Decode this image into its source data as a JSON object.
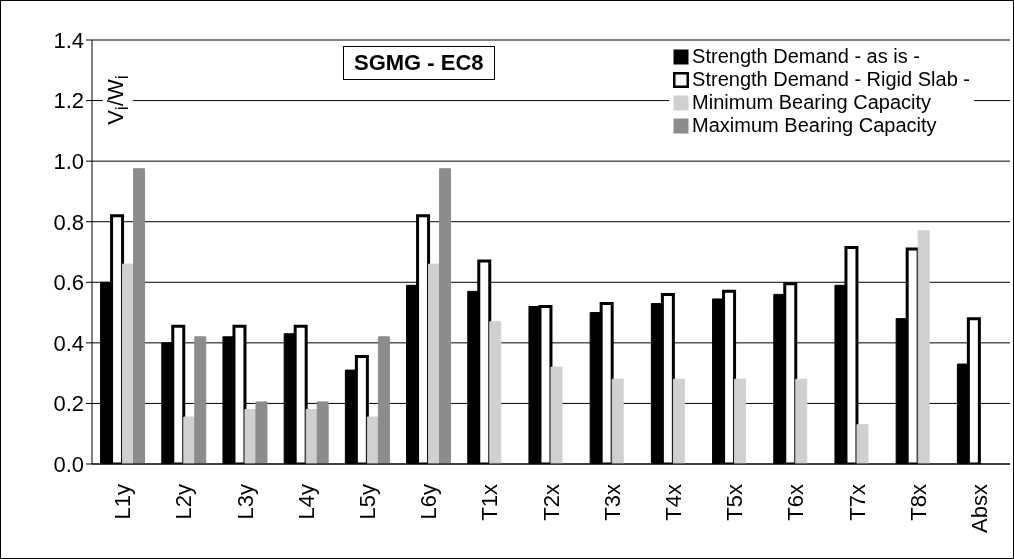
{
  "chart_data": {
    "type": "bar",
    "title": "SGMG - EC8",
    "ylabel": "V$_{i}$/W$_{i}$",
    "categories": [
      "L1y",
      "L2y",
      "L3y",
      "L4y",
      "L5y",
      "L6y",
      "T1x",
      "T2x",
      "T3x",
      "T4x",
      "T5x",
      "T6x",
      "T7x",
      "T8x",
      "Absx"
    ],
    "series": [
      {
        "name": "Strength Demand - as is -",
        "color": "#000000",
        "values": [
          0.6,
          0.4,
          0.42,
          0.43,
          0.31,
          0.59,
          0.57,
          0.52,
          0.5,
          0.53,
          0.545,
          0.56,
          0.59,
          0.48,
          0.33
        ]
      },
      {
        "name": "Strength Demand - Rigid Slab -",
        "color": "#ffffff",
        "values": [
          0.82,
          0.455,
          0.455,
          0.455,
          0.355,
          0.82,
          0.67,
          0.52,
          0.53,
          0.56,
          0.57,
          0.595,
          0.715,
          0.71,
          0.48
        ]
      },
      {
        "name": "Minimum Bearing Capacity",
        "color": "#d0d0d0",
        "values": [
          0.66,
          0.155,
          0.18,
          0.18,
          0.155,
          0.66,
          0.47,
          0.32,
          0.28,
          0.28,
          0.28,
          0.28,
          0.13,
          0.77,
          null
        ]
      },
      {
        "name": "Maximum Bearing Capacity",
        "color": "#8c8c8c",
        "values": [
          0.975,
          0.42,
          0.205,
          0.205,
          0.42,
          0.975,
          null,
          null,
          null,
          null,
          null,
          null,
          null,
          null,
          null
        ]
      }
    ],
    "ylim": [
      0,
      1.4
    ],
    "yticks": [
      {
        "value": 0,
        "label": "0.0"
      },
      {
        "value": 0.2,
        "label": "0.2"
      },
      {
        "value": 0.4,
        "label": "0.4"
      },
      {
        "value": 0.6,
        "label": "0.6"
      },
      {
        "value": 0.8,
        "label": "0.8"
      },
      {
        "value": 1.0,
        "label": "1.0"
      },
      {
        "value": 1.2,
        "label": "1.2"
      },
      {
        "value": 1.4,
        "label": "1.4"
      }
    ],
    "grid": "y",
    "legend": "top right"
  }
}
